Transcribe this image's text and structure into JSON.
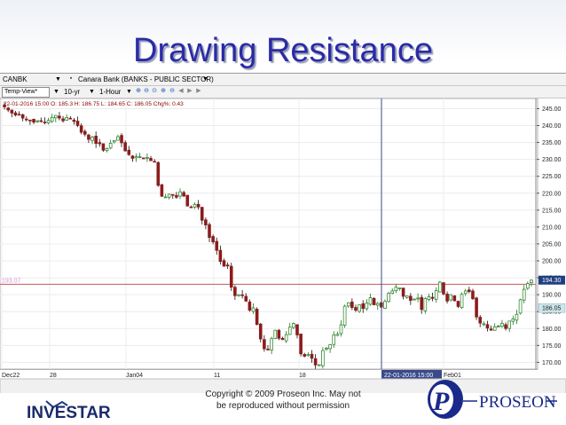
{
  "slide": {
    "title": "Drawing Resistance",
    "copyright_line1": "Copyright © 2009 Proseon Inc. May not",
    "copyright_line2": "be reproduced without permission",
    "logo_left_text": "INVESTAR",
    "logo_right_text": "PROSEON"
  },
  "toolbar1": {
    "symbol": "CANBK",
    "description": "Canara Bank  (BANKS - PUBLIC SECTOR)"
  },
  "toolbar2": {
    "view": "Temp-View*",
    "period": "10-yr",
    "interval": "1-Hour"
  },
  "chart_data": {
    "type": "candlestick",
    "info_line": "22-01-2016 15:00  O: 185.3  H: 186.75  L: 184.65  C: 186.05  Chg%: 0.43",
    "ylim": [
      168,
      248
    ],
    "y_ticks": [
      170,
      175,
      180,
      185,
      190,
      195,
      200,
      205,
      210,
      215,
      220,
      225,
      230,
      235,
      240,
      245
    ],
    "y_tick_labels": [
      "170.00",
      "175.00",
      "180.00",
      "185.00",
      "190.00",
      "195.00",
      "200.00",
      "205.00",
      "210.00",
      "215.00",
      "220.00",
      "225.00",
      "230.00",
      "235.00",
      "240.00",
      "245.00"
    ],
    "x_labels": [
      "Dec22",
      "28",
      "Jan04",
      "11",
      "18",
      "Feb01"
    ],
    "cursor_label": "22-01-2016 15:00",
    "resistance_level": 193.07,
    "resistance_label": "193.07",
    "price_badge_1": "194.30",
    "price_badge_2": "186.05",
    "grid": true,
    "close": [
      245.5,
      244.6,
      243.7,
      243.1,
      243.2,
      242.2,
      241.9,
      241.5,
      241.0,
      241.4,
      241.3,
      241.0,
      241.5,
      242.4,
      243.0,
      242.2,
      241.4,
      242.4,
      242.0,
      241.2,
      240.0,
      238.0,
      237.4,
      235.9,
      236.6,
      234.7,
      234.6,
      232.7,
      233.2,
      234.8,
      235.6,
      236.7,
      234.9,
      232.5,
      231.4,
      230.3,
      230.8,
      230.8,
      230.4,
      230.6,
      229.6,
      229.2,
      222.3,
      219.1,
      218.9,
      219.7,
      219.4,
      218.8,
      220.4,
      219.1,
      216.2,
      215.8,
      216.7,
      215.9,
      212.0,
      210.6,
      206.9,
      205.6,
      203.1,
      199.8,
      198.4,
      198.5,
      192.2,
      189.7,
      190.0,
      189.8,
      188.1,
      185.4,
      186.1,
      181.2,
      176.9,
      174.0,
      173.8,
      177.0,
      179.5,
      177.1,
      176.7,
      178.2,
      180.4,
      181.5,
      178.1,
      172.5,
      171.8,
      172.3,
      171.2,
      169.2,
      169.3,
      173.5,
      174.2,
      175.2,
      178.1,
      178.3,
      181.1,
      186.6,
      187.6,
      186.2,
      185.4,
      187.0,
      185.9,
      187.5,
      189.1,
      187.0,
      187.4,
      186.3,
      188.0,
      190.4,
      191.1,
      192.2,
      192.0,
      189.5,
      189.6,
      188.3,
      188.7,
      189.0,
      185.6,
      188.9,
      189.4,
      188.9,
      191.2,
      193.7,
      190.2,
      188.1,
      190.0,
      188.2,
      186.5,
      190.1,
      191.1,
      190.9,
      188.8,
      183.4,
      181.6,
      181.4,
      180.1,
      179.5,
      180.5,
      180.7,
      181.5,
      180.0,
      182.2,
      182.8,
      184.2,
      188.5,
      191.6,
      193.3,
      194.3
    ]
  }
}
